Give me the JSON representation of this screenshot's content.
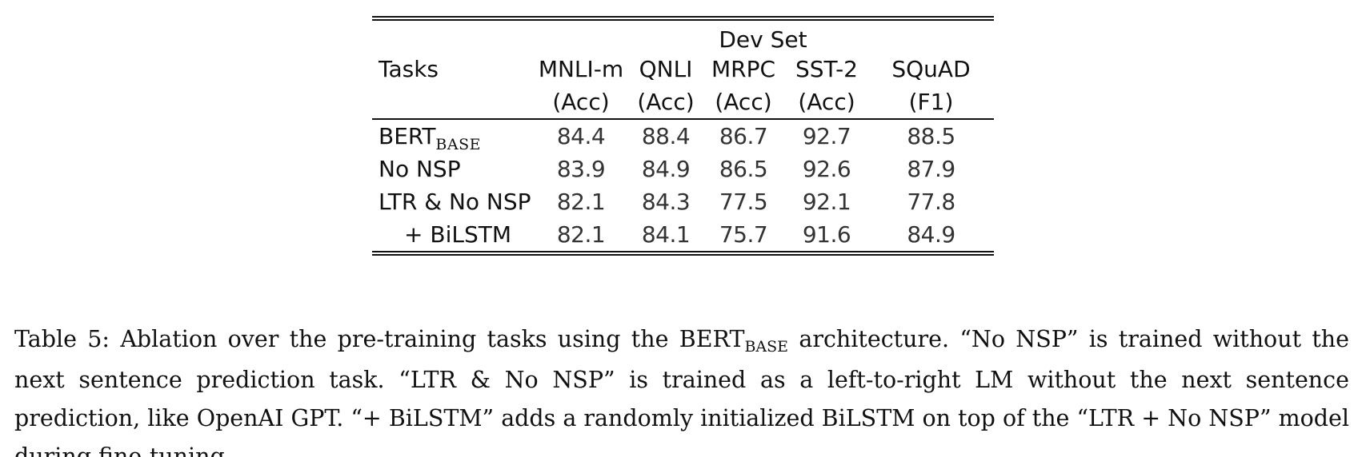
{
  "table": {
    "group_header": "Dev Set",
    "task_header": "Tasks",
    "columns": [
      {
        "name": "MNLI-m",
        "metric": "(Acc)"
      },
      {
        "name": "QNLI",
        "metric": "(Acc)"
      },
      {
        "name": "MRPC",
        "metric": "(Acc)"
      },
      {
        "name": "SST-2",
        "metric": "(Acc)"
      },
      {
        "name": "SQuAD",
        "metric": "(F1)"
      }
    ],
    "rows": [
      {
        "task": "BERT",
        "task_sub": "BASE",
        "values": [
          "84.4",
          "88.4",
          "86.7",
          "92.7",
          "88.5"
        ]
      },
      {
        "task": "No NSP",
        "values": [
          "83.9",
          "84.9",
          "86.5",
          "92.6",
          "87.9"
        ]
      },
      {
        "task": "LTR & No NSP",
        "values": [
          "82.1",
          "84.3",
          "77.5",
          "92.1",
          "77.8"
        ]
      },
      {
        "task": "+ BiLSTM",
        "values": [
          "82.1",
          "84.1",
          "75.7",
          "91.6",
          "84.9"
        ]
      }
    ]
  },
  "caption": {
    "part1": "Table 5: Ablation over the pre-training tasks using the BERT",
    "sub": "BASE",
    "part2": " architecture. “No NSP” is trained without the next sentence prediction task. “LTR & No NSP” is trained as a left-to-right LM without the next sentence prediction, like OpenAI GPT. “+ BiLSTM” adds a randomly initialized BiLSTM on top of the “LTR + No NSP” model during fine-tuning."
  }
}
